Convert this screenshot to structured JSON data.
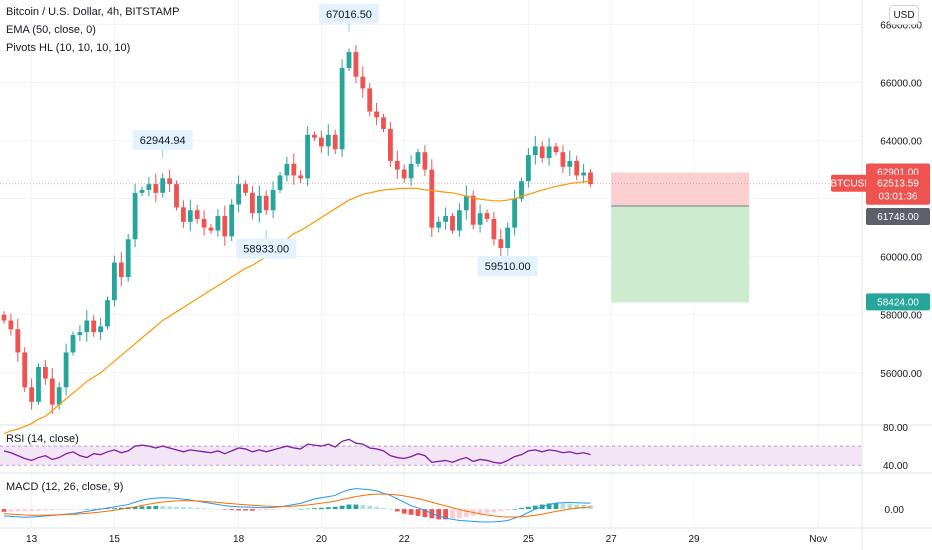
{
  "header": {
    "title": "Bitcoin / U.S. Dollar, 4h, BITSTAMP",
    "ema_label": "EMA (50, close, 0)",
    "pivots_label": "Pivots HL (10, 10, 10, 10)",
    "currency_button": "USD"
  },
  "colors": {
    "up": "#26a69a",
    "down": "#ef5350",
    "ema": "#ff9800",
    "rsi": "#7b1fa2",
    "macd": "#2196f3",
    "signal": "#ff6d00",
    "stop_zone": "#f9cfcf",
    "target_zone": "#cdeccf"
  },
  "chart_data": [
    {
      "type": "candlestick",
      "title": "Bitcoin / U.S. Dollar, 4h, BITSTAMP",
      "ylim": [
        54200,
        68500
      ],
      "y_ticks": [
        56000,
        58000,
        60000,
        62000,
        64000,
        66000,
        68000
      ],
      "y_tick_labels": [
        "56000.00",
        "58000.00",
        "60000.00",
        "62000.00",
        "64000.00",
        "66000.00",
        "68000.00"
      ],
      "x_ticks": [
        {
          "label": "13",
          "bar": 4
        },
        {
          "label": "15",
          "bar": 16
        },
        {
          "label": "18",
          "bar": 34
        },
        {
          "label": "20",
          "bar": 46
        },
        {
          "label": "22",
          "bar": 58
        },
        {
          "label": "25",
          "bar": 76
        },
        {
          "label": "27",
          "bar": 88
        },
        {
          "label": "29",
          "bar": 100
        },
        {
          "label": "Nov",
          "bar": 118
        }
      ],
      "closes": [
        57800,
        57500,
        56700,
        55500,
        55000,
        56200,
        55800,
        54900,
        55500,
        56700,
        57300,
        57400,
        57800,
        57400,
        57600,
        58500,
        59800,
        59300,
        60600,
        62200,
        62300,
        62500,
        62200,
        62700,
        62500,
        61700,
        61200,
        61600,
        61300,
        61000,
        60900,
        61400,
        60700,
        61800,
        62500,
        62200,
        61500,
        62100,
        61600,
        62300,
        62800,
        63200,
        62800,
        62700,
        64200,
        64100,
        63800,
        64200,
        63700,
        66500,
        67050,
        66200,
        65800,
        65000,
        64800,
        64400,
        63300,
        63000,
        62700,
        63200,
        63600,
        63000,
        61000,
        61200,
        61400,
        60900,
        61600,
        62100,
        61100,
        61500,
        61300,
        60600,
        60300,
        61000,
        62000,
        62600,
        63500,
        63800,
        63400,
        63800,
        63600,
        63100,
        63300,
        62800,
        62900,
        62500
      ],
      "ema": [
        53900,
        54000,
        54050,
        54150,
        54250,
        54400,
        54500,
        54700,
        54900,
        55100,
        55300,
        55500,
        55700,
        55850,
        56000,
        56200,
        56400,
        56600,
        56800,
        57000,
        57200,
        57400,
        57600,
        57800,
        57950,
        58100,
        58250,
        58400,
        58550,
        58700,
        58850,
        59000,
        59150,
        59300,
        59450,
        59600,
        59700,
        59850,
        60000,
        60200,
        60400,
        60600,
        60800,
        60900,
        61050,
        61200,
        61350,
        61500,
        61650,
        61800,
        61950,
        62050,
        62150,
        62200,
        62250,
        62300,
        62320,
        62340,
        62350,
        62360,
        62350,
        62300,
        62280,
        62250,
        62220,
        62200,
        62150,
        62080,
        62020,
        61980,
        61950,
        61930,
        61920,
        61950,
        62000,
        62080,
        62150,
        62220,
        62300,
        62360,
        62420,
        62470,
        62520,
        62550,
        62580,
        62600
      ],
      "pivots": [
        {
          "label": "62944.94",
          "bar": 23,
          "kind": "high"
        },
        {
          "label": "58933.00",
          "bar": 38,
          "kind": "low"
        },
        {
          "label": "67016.50",
          "bar": 50,
          "kind": "high"
        },
        {
          "label": "59510.00",
          "bar": 73,
          "kind": "low"
        }
      ],
      "position": {
        "entry": 61748.0,
        "stop": 62901.0,
        "target": 58424.0,
        "entry_label": "61748.00",
        "stop_label": "62901.00",
        "target_label": "58424.00",
        "start_bar": 88,
        "end_bar": 108
      },
      "last_price": {
        "symbol": "BTCUSD",
        "price_label": "62513.59",
        "countdown": "03:01:36",
        "value": 62513.59
      }
    },
    {
      "type": "line",
      "title": "RSI (14, close)",
      "ylim": [
        35,
        82
      ],
      "y_tick_labels": [
        "80.00",
        "40.00"
      ],
      "band": [
        40,
        60
      ],
      "values": [
        55,
        53,
        50,
        47,
        45,
        48,
        50,
        46,
        48,
        52,
        54,
        50,
        48,
        52,
        51,
        54,
        56,
        53,
        55,
        60,
        61,
        60,
        58,
        60,
        58,
        56,
        54,
        56,
        55,
        54,
        53,
        55,
        52,
        55,
        58,
        57,
        54,
        56,
        54,
        56,
        58,
        60,
        58,
        57,
        62,
        61,
        60,
        62,
        59,
        65,
        67,
        63,
        62,
        58,
        57,
        55,
        50,
        48,
        47,
        49,
        52,
        50,
        43,
        44,
        45,
        43,
        46,
        48,
        44,
        46,
        45,
        43,
        42,
        45,
        49,
        51,
        55,
        56,
        54,
        56,
        55,
        53,
        54,
        52,
        53,
        51
      ]
    },
    {
      "type": "bar+line",
      "title": "MACD (12, 26, close, 9)",
      "ylim": [
        -700,
        1500
      ],
      "y_tick_labels": [
        "0.00"
      ],
      "histogram": [
        -120,
        -110,
        -100,
        -90,
        -80,
        -70,
        -60,
        -50,
        -40,
        -30,
        -20,
        -10,
        0,
        10,
        20,
        30,
        40,
        60,
        80,
        100,
        120,
        130,
        140,
        130,
        120,
        110,
        100,
        80,
        60,
        40,
        20,
        0,
        -20,
        -40,
        -60,
        -60,
        -70,
        -60,
        -50,
        -40,
        -30,
        -20,
        -10,
        0,
        20,
        40,
        60,
        80,
        100,
        150,
        200,
        200,
        180,
        150,
        100,
        50,
        0,
        -100,
        -200,
        -250,
        -300,
        -350,
        -400,
        -450,
        -450,
        -420,
        -400,
        -350,
        -300,
        -250,
        -200,
        -150,
        -100,
        -50,
        0,
        50,
        100,
        150,
        200,
        250,
        260,
        240,
        220,
        200,
        180,
        160
      ],
      "macd": [
        -300,
        -320,
        -340,
        -360,
        -350,
        -330,
        -300,
        -280,
        -250,
        -220,
        -200,
        -150,
        -100,
        -50,
        0,
        50,
        100,
        150,
        200,
        300,
        400,
        450,
        480,
        500,
        490,
        470,
        440,
        400,
        350,
        300,
        250,
        200,
        150,
        120,
        100,
        90,
        80,
        70,
        60,
        80,
        100,
        150,
        200,
        250,
        350,
        450,
        500,
        550,
        600,
        750,
        850,
        900,
        880,
        850,
        800,
        700,
        600,
        450,
        300,
        150,
        50,
        -50,
        -200,
        -300,
        -400,
        -450,
        -500,
        -520,
        -540,
        -560,
        -570,
        -560,
        -540,
        -500,
        -400,
        -300,
        -150,
        0,
        100,
        200,
        260,
        280,
        290,
        280,
        270,
        260
      ],
      "signal": [
        -200,
        -220,
        -240,
        -260,
        -270,
        -270,
        -265,
        -260,
        -250,
        -240,
        -230,
        -210,
        -190,
        -160,
        -130,
        -90,
        -50,
        0,
        50,
        100,
        160,
        220,
        270,
        310,
        340,
        360,
        370,
        365,
        355,
        340,
        320,
        295,
        265,
        240,
        215,
        190,
        170,
        150,
        130,
        120,
        115,
        120,
        130,
        150,
        180,
        220,
        260,
        300,
        350,
        420,
        490,
        550,
        600,
        640,
        660,
        660,
        650,
        620,
        580,
        520,
        460,
        390,
        300,
        220,
        140,
        60,
        -20,
        -90,
        -150,
        -210,
        -260,
        -300,
        -330,
        -350,
        -350,
        -340,
        -310,
        -270,
        -220,
        -160,
        -100,
        -50,
        0,
        40,
        70,
        100
      ]
    }
  ]
}
